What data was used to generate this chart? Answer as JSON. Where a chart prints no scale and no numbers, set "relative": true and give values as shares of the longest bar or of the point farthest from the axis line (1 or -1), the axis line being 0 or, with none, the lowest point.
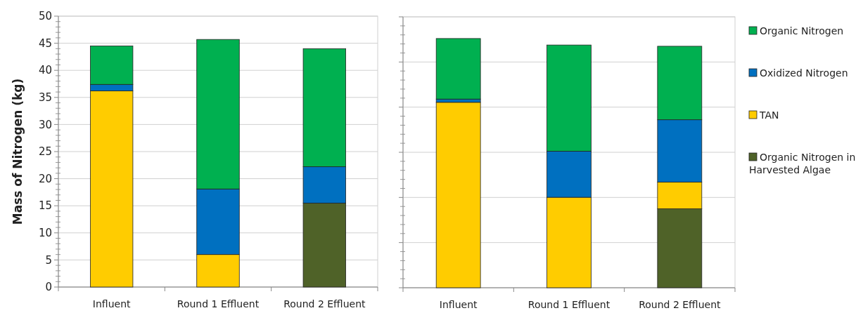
{
  "chart_data": [
    {
      "type": "bar",
      "stacked": true,
      "ylabel": "Mass of Nitrogen (kg)",
      "categories": [
        "Influent",
        "Round 1 Effluent",
        "Round 2 Effluent"
      ],
      "ylim": [
        0,
        50
      ],
      "yticks": [
        0,
        5,
        10,
        15,
        20,
        25,
        30,
        35,
        40,
        45,
        50
      ],
      "grid": "y",
      "legend": false,
      "series": [
        {
          "color": "#4f6228",
          "values": [
            null,
            null,
            15.5
          ]
        },
        {
          "color": "#ffcc00",
          "values": [
            36.2,
            6.0,
            null
          ]
        },
        {
          "color": "#0070c0",
          "values": [
            1.2,
            12.1,
            6.7
          ]
        },
        {
          "color": "#00b050",
          "values": [
            7.1,
            27.6,
            21.8
          ]
        }
      ]
    },
    {
      "type": "bar",
      "stacked": true,
      "relative": true,
      "categories": [
        "Influent",
        "Round 1 Effluent",
        "Round 2 Effluent"
      ],
      "grid": "y",
      "legend": "right",
      "series": [
        {
          "name": "Organic Nitrogen in Harvested Algae",
          "color": "#4f6228",
          "values": [
            null,
            null,
            0.317
          ]
        },
        {
          "name": "TAN",
          "color": "#ffcc00",
          "values": [
            0.744,
            0.363,
            0.107
          ]
        },
        {
          "name": "Oxidized Nitrogen",
          "color": "#0070c0",
          "values": [
            0.013,
            0.185,
            0.25
          ]
        },
        {
          "name": "Organic Nitrogen",
          "color": "#00b050",
          "values": [
            0.243,
            0.426,
            0.295
          ]
        }
      ]
    }
  ]
}
